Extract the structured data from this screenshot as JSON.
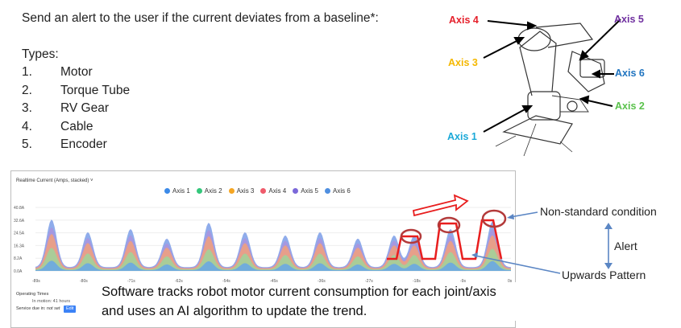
{
  "intro": {
    "heading": "Send an alert to the user if the current deviates from a baseline*:",
    "types_label": "Types:",
    "types": [
      {
        "num": "1.",
        "label": "Motor"
      },
      {
        "num": "2.",
        "label": "Torque Tube"
      },
      {
        "num": "3.",
        "label": "RV Gear"
      },
      {
        "num": "4.",
        "label": "Cable"
      },
      {
        "num": "5.",
        "label": "Encoder"
      }
    ]
  },
  "robot": {
    "axis_labels": [
      {
        "text": "Axis 4",
        "color": "#e5202b"
      },
      {
        "text": "Axis 5",
        "color": "#7030a0"
      },
      {
        "text": "Axis 3",
        "color": "#f5b800"
      },
      {
        "text": "Axis 6",
        "color": "#1f74c0"
      },
      {
        "text": "Axis 2",
        "color": "#5ac24c"
      },
      {
        "text": "Axis 1",
        "color": "#1ba9d8"
      }
    ]
  },
  "panel": {
    "title": "Realtime Current (Amps, stacked) ˅",
    "operating_title": "Operating Times",
    "in_motion": "In motion: 41 hours",
    "service_due_label": "Service due in:",
    "service_due_value": "not set",
    "edit_label": "Edit"
  },
  "chart_data": {
    "type": "area",
    "stacked": true,
    "title": "Realtime Current (Amps, stacked)",
    "ylim": [
      0,
      40.8
    ],
    "y_ticks": [
      "40.8A",
      "32.6A",
      "24.5A",
      "16.3A",
      "8.2A",
      "0.0A"
    ],
    "x_ticks": [
      "-89s",
      "-80s",
      "-71s",
      "-62s",
      "-54s",
      "-45s",
      "-36s",
      "-27s",
      "-18s",
      "-9s",
      "0s"
    ],
    "grid": true,
    "legend_position": "top-center",
    "series": [
      {
        "name": "Axis 1",
        "color": "#3c8ae8"
      },
      {
        "name": "Axis 2",
        "color": "#34c77b"
      },
      {
        "name": "Axis 3",
        "color": "#f5a623"
      },
      {
        "name": "Axis 4",
        "color": "#ef5b6b"
      },
      {
        "name": "Axis 5",
        "color": "#7b68d9"
      },
      {
        "name": "Axis 6",
        "color": "#4f8fe0"
      }
    ]
  },
  "caption": "Software tracks robot motor current consumption for each joint/axis and uses an AI algorithm to update the trend.",
  "annotations": {
    "non_standard": "Non-standard condition",
    "alert": "Alert",
    "upwards": "Upwards Pattern"
  }
}
